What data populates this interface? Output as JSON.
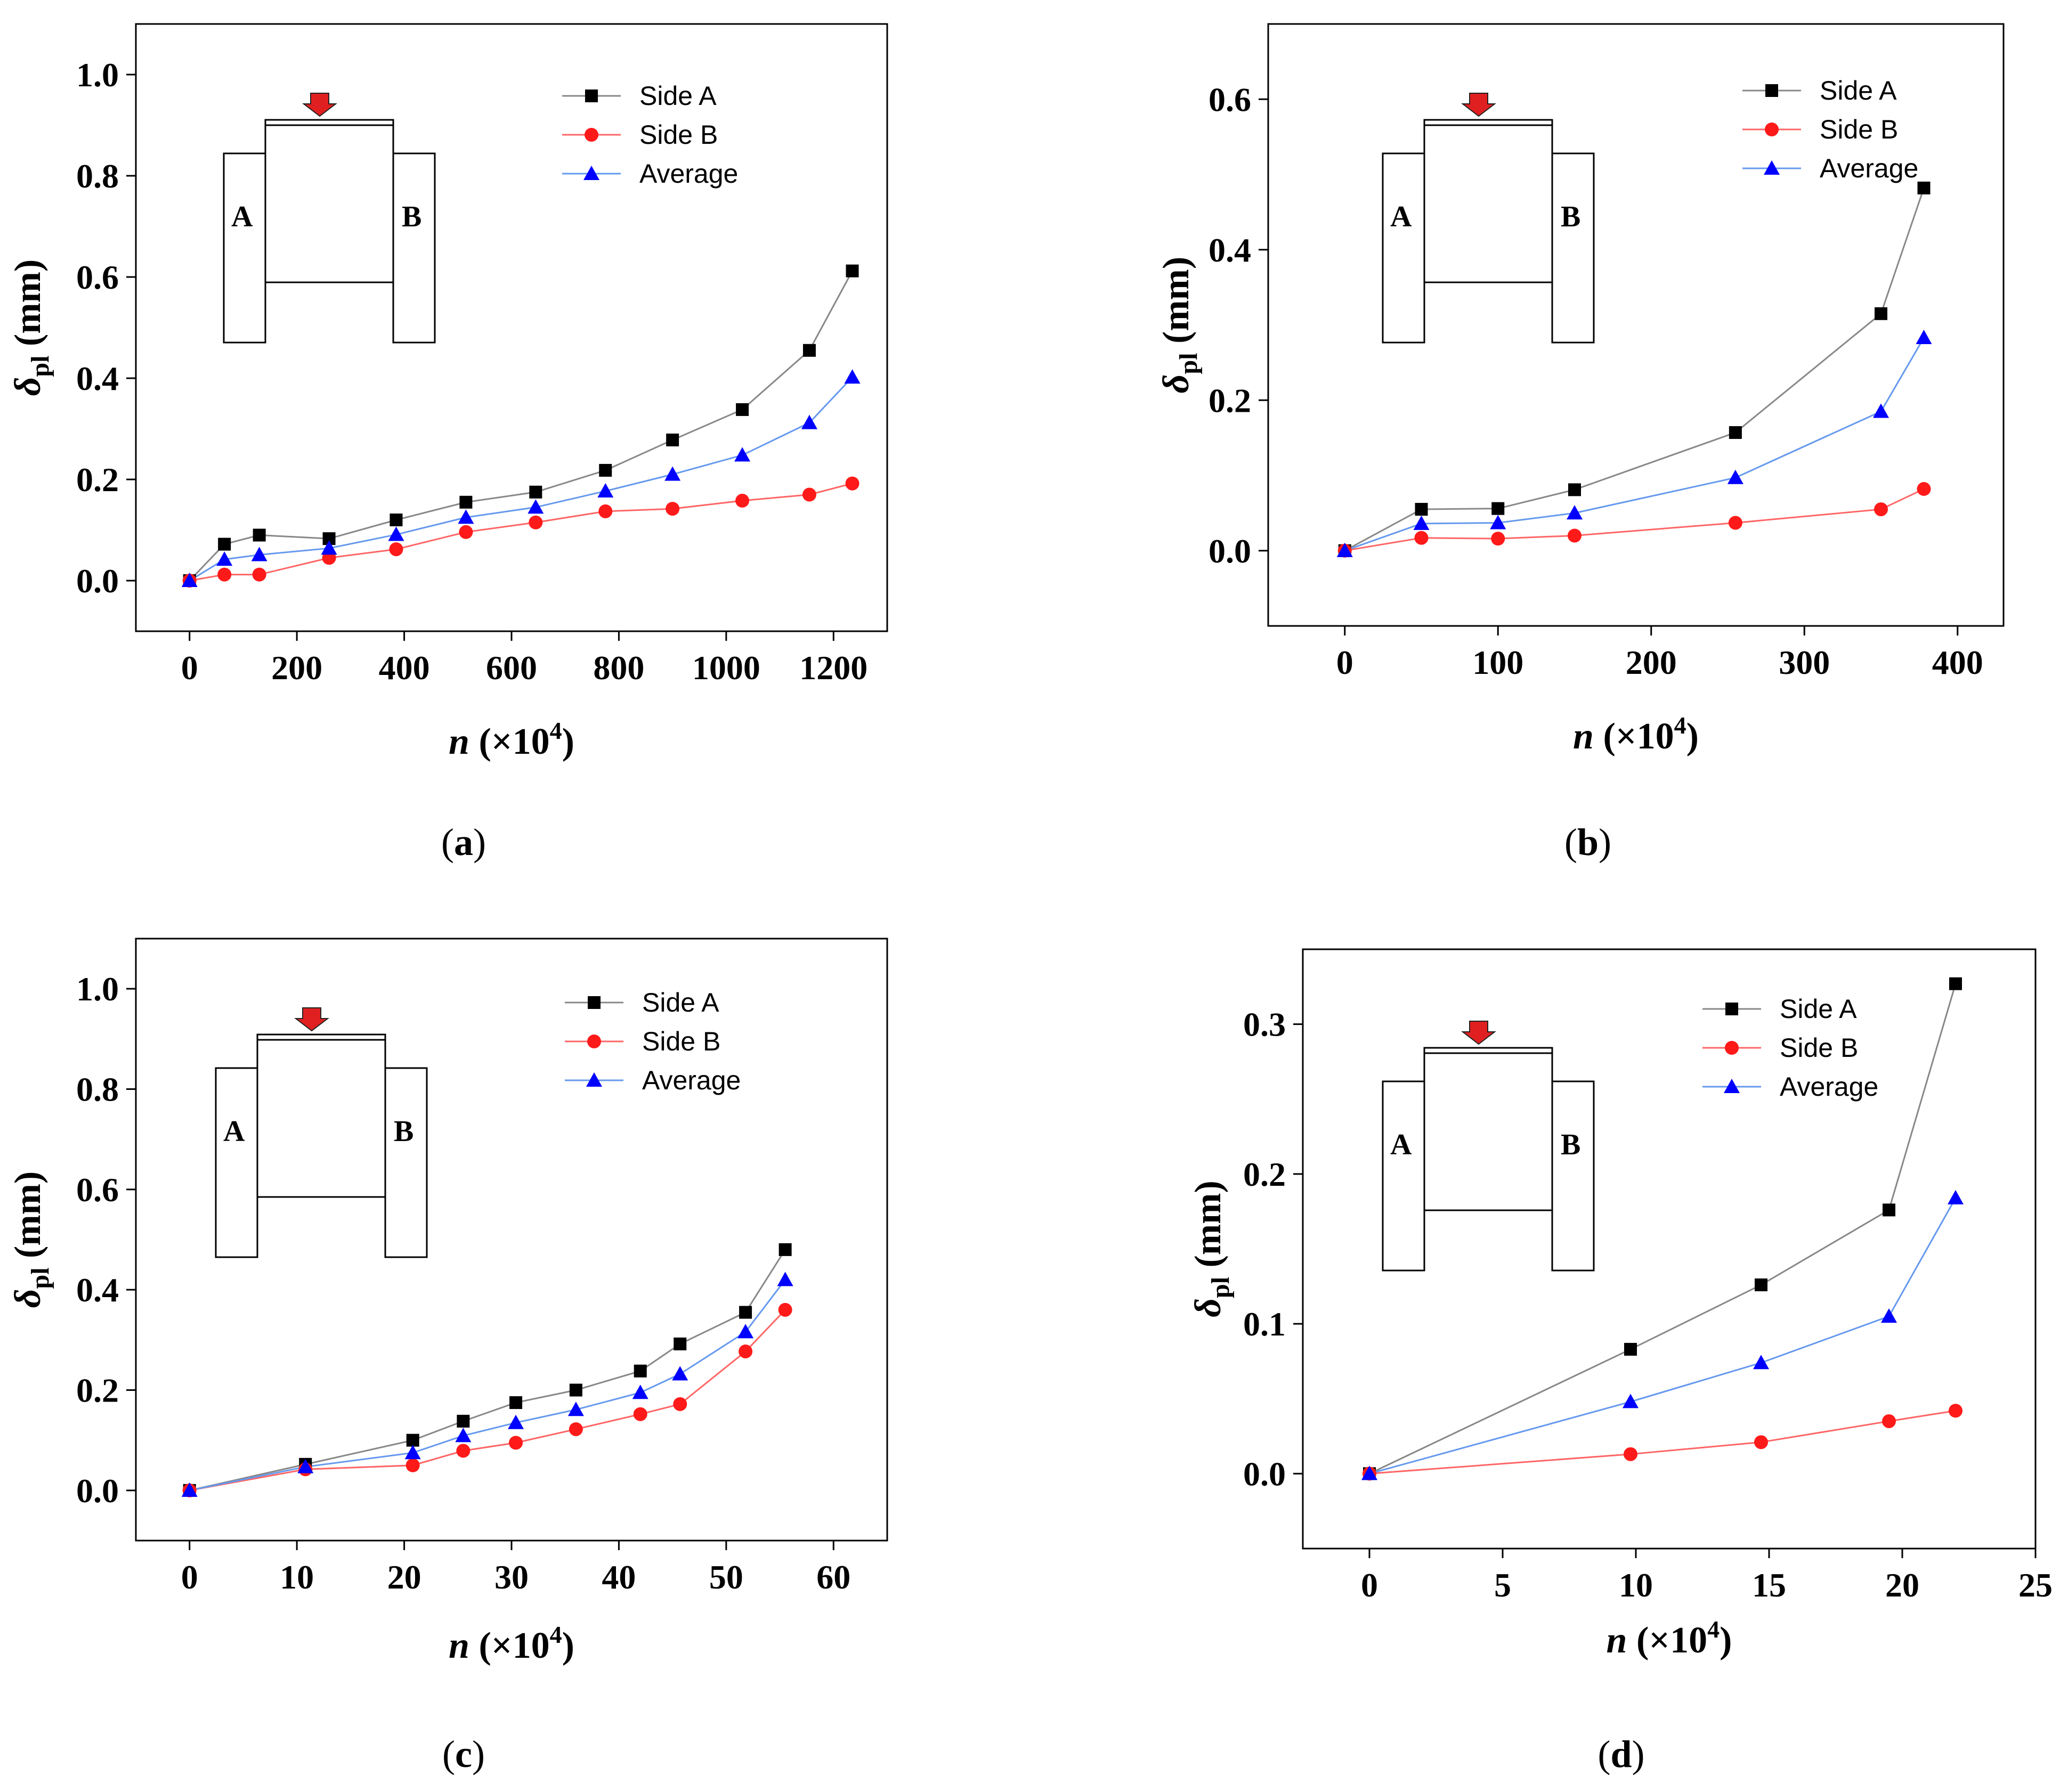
{
  "figure": {
    "legend_labels": [
      "Side A",
      "Side B",
      "Average"
    ],
    "inset_labels": {
      "left": "A",
      "right": "B"
    }
  },
  "colors": {
    "side_a": "#000000",
    "side_b": "#ff1a1a",
    "average": "#0000ff",
    "side_a_line": "#888888",
    "side_b_line": "#ff6666",
    "average_line": "#6699ee",
    "arrow": "#e02020"
  },
  "chart_data": [
    {
      "panel": "a",
      "caption": "(a)",
      "type": "line",
      "xlabel": "n (×10⁴)",
      "ylabel": "δpl (mm)",
      "xlim": [
        -100,
        1300
      ],
      "ylim": [
        -0.1,
        1.1
      ],
      "xticks": [
        0,
        200,
        400,
        600,
        800,
        1000,
        1200
      ],
      "yticks": [
        0.0,
        0.2,
        0.4,
        0.6,
        0.8,
        1.0
      ],
      "xtick_labels": [
        "0",
        "200",
        "400",
        "600",
        "800",
        "1000",
        "1200"
      ],
      "ytick_labels": [
        "0.0",
        "0.2",
        "0.4",
        "0.6",
        "0.8",
        "1.0"
      ],
      "y_decimals": 1,
      "series": [
        {
          "name": "Side A",
          "marker": "square",
          "x": [
            0,
            65,
            130,
            260,
            385,
            515,
            645,
            775,
            900,
            1030,
            1155,
            1235
          ],
          "y": [
            0.0,
            0.072,
            0.09,
            0.083,
            0.12,
            0.155,
            0.175,
            0.218,
            0.278,
            0.338,
            0.455,
            0.612
          ]
        },
        {
          "name": "Side B",
          "marker": "circle",
          "x": [
            0,
            65,
            130,
            260,
            385,
            515,
            645,
            775,
            900,
            1030,
            1155,
            1235
          ],
          "y": [
            0.0,
            0.012,
            0.012,
            0.045,
            0.062,
            0.096,
            0.115,
            0.137,
            0.142,
            0.158,
            0.17,
            0.192
          ]
        },
        {
          "name": "Average",
          "marker": "triangle",
          "x": [
            0,
            65,
            130,
            260,
            385,
            515,
            645,
            775,
            900,
            1030,
            1155,
            1235
          ],
          "y": [
            0.0,
            0.042,
            0.051,
            0.064,
            0.091,
            0.125,
            0.145,
            0.177,
            0.21,
            0.248,
            0.312,
            0.402
          ]
        }
      ]
    },
    {
      "panel": "b",
      "caption": "(b)",
      "type": "line",
      "xlabel": "n (×10⁴)",
      "ylabel": "δpl (mm)",
      "xlim": [
        -50,
        430
      ],
      "ylim": [
        -0.1,
        0.7
      ],
      "xticks": [
        0,
        100,
        200,
        300,
        400
      ],
      "yticks": [
        0.0,
        0.2,
        0.4,
        0.6
      ],
      "xtick_labels": [
        "0",
        "100",
        "200",
        "300",
        "400"
      ],
      "ytick_labels": [
        "0.0",
        "0.2",
        "0.4",
        "0.6"
      ],
      "y_decimals": 1,
      "series": [
        {
          "name": "Side A",
          "marker": "square",
          "x": [
            0,
            50,
            100,
            150,
            255,
            350,
            378
          ],
          "y": [
            0.0,
            0.055,
            0.056,
            0.081,
            0.157,
            0.315,
            0.482
          ]
        },
        {
          "name": "Side B",
          "marker": "circle",
          "x": [
            0,
            50,
            100,
            150,
            255,
            350,
            378
          ],
          "y": [
            0.0,
            0.017,
            0.016,
            0.02,
            0.037,
            0.055,
            0.082
          ]
        },
        {
          "name": "Average",
          "marker": "triangle",
          "x": [
            0,
            50,
            100,
            150,
            255,
            350,
            378
          ],
          "y": [
            0.0,
            0.036,
            0.037,
            0.05,
            0.097,
            0.185,
            0.283
          ]
        }
      ]
    },
    {
      "panel": "c",
      "caption": "(c)",
      "type": "line",
      "xlabel": "n (×10⁴)",
      "ylabel": "δpl (mm)",
      "xlim": [
        -5,
        65
      ],
      "ylim": [
        -0.1,
        1.1
      ],
      "xticks": [
        0,
        10,
        20,
        30,
        40,
        50,
        60
      ],
      "yticks": [
        0.0,
        0.2,
        0.4,
        0.6,
        0.8,
        1.0
      ],
      "xtick_labels": [
        "0",
        "10",
        "20",
        "30",
        "40",
        "50",
        "60"
      ],
      "ytick_labels": [
        "0.0",
        "0.2",
        "0.4",
        "0.6",
        "0.8",
        "1.0"
      ],
      "y_decimals": 1,
      "series": [
        {
          "name": "Side A",
          "marker": "square",
          "x": [
            0,
            10.8,
            20.8,
            25.5,
            30.4,
            36,
            42,
            45.7,
            51.8,
            55.5
          ],
          "y": [
            0.0,
            0.052,
            0.1,
            0.138,
            0.175,
            0.2,
            0.238,
            0.292,
            0.355,
            0.48
          ]
        },
        {
          "name": "Side B",
          "marker": "circle",
          "x": [
            0,
            10.8,
            20.8,
            25.5,
            30.4,
            36,
            42,
            45.7,
            51.8,
            55.5
          ],
          "y": [
            0.0,
            0.042,
            0.05,
            0.079,
            0.095,
            0.122,
            0.152,
            0.172,
            0.277,
            0.36
          ]
        },
        {
          "name": "Average",
          "marker": "triangle",
          "x": [
            0,
            10.8,
            20.8,
            25.5,
            30.4,
            36,
            42,
            45.7,
            51.8,
            55.5
          ],
          "y": [
            0.0,
            0.047,
            0.075,
            0.109,
            0.135,
            0.161,
            0.195,
            0.232,
            0.316,
            0.42
          ]
        }
      ]
    },
    {
      "panel": "d",
      "caption": "(d)",
      "type": "line",
      "xlabel": "n (×10⁴)",
      "ylabel": "δpl (mm)",
      "xlim": [
        -2.5,
        25
      ],
      "ylim": [
        -0.05,
        0.35
      ],
      "xticks": [
        0,
        5,
        10,
        15,
        20,
        25
      ],
      "yticks": [
        0.0,
        0.1,
        0.2,
        0.3
      ],
      "xtick_labels": [
        "0",
        "5",
        "10",
        "15",
        "20",
        "25"
      ],
      "ytick_labels": [
        "0.0",
        "0.1",
        "0.2",
        "0.3"
      ],
      "y_decimals": 1,
      "series": [
        {
          "name": "Side A",
          "marker": "square",
          "x": [
            0,
            9.8,
            14.7,
            19.5,
            22
          ],
          "y": [
            0.0,
            0.083,
            0.126,
            0.176,
            0.327
          ]
        },
        {
          "name": "Side B",
          "marker": "circle",
          "x": [
            0,
            9.8,
            14.7,
            19.5,
            22
          ],
          "y": [
            0.0,
            0.013,
            0.021,
            0.035,
            0.042
          ]
        },
        {
          "name": "Average",
          "marker": "triangle",
          "x": [
            0,
            9.8,
            14.7,
            19.5,
            22
          ],
          "y": [
            0.0,
            0.048,
            0.074,
            0.105,
            0.184
          ]
        }
      ]
    }
  ]
}
